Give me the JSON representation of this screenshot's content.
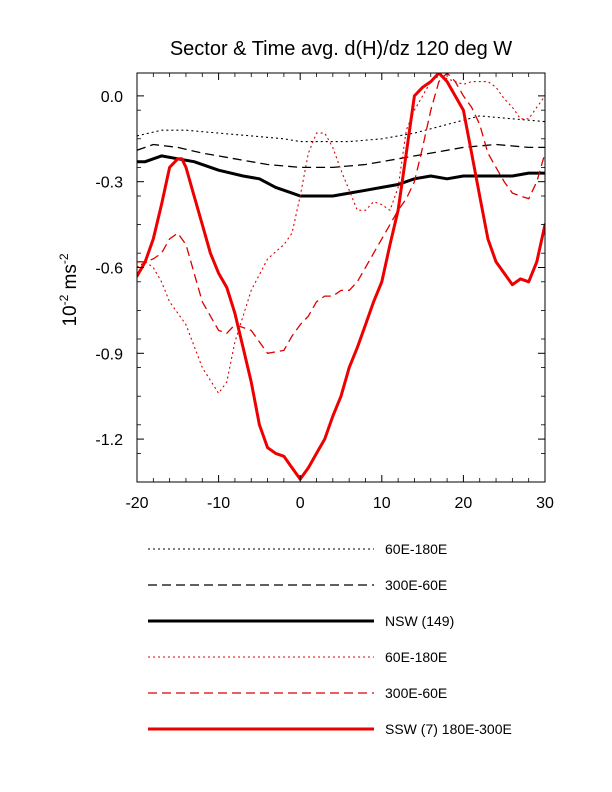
{
  "chart_data": {
    "type": "line",
    "title": "Sector & Time avg. d(H)/dz 120 deg W",
    "xlabel": "",
    "ylabel_base": "10",
    "ylabel_exp1": "-2",
    "ylabel_unit": " ms",
    "ylabel_exp2": "-2",
    "xlim": [
      -20,
      30
    ],
    "ylim": [
      -1.35,
      0.08
    ],
    "xticks": [
      -20,
      -10,
      0,
      10,
      20,
      30
    ],
    "xtick_labels": [
      "-20",
      "-10",
      "0",
      "10",
      "20",
      "30"
    ],
    "yticks": [
      0.0,
      -0.3,
      -0.6,
      -0.9,
      -1.2
    ],
    "ytick_labels": [
      "0.0",
      "-0.3",
      "-0.6",
      "-0.9",
      "-1.2"
    ],
    "grid": false,
    "legend_position": "below",
    "series": [
      {
        "name": "60E-180E",
        "color": "#000000",
        "style": "dotted",
        "width": "thin",
        "x": [
          -20,
          -17,
          -14,
          -10,
          -6,
          -2,
          0,
          2,
          6,
          10,
          14,
          18,
          22,
          26,
          30
        ],
        "y": [
          -0.14,
          -0.12,
          -0.12,
          -0.13,
          -0.14,
          -0.15,
          -0.16,
          -0.16,
          -0.16,
          -0.15,
          -0.13,
          -0.1,
          -0.07,
          -0.08,
          -0.09
        ]
      },
      {
        "name": "300E-60E",
        "color": "#000000",
        "style": "dashed",
        "width": "medium",
        "x": [
          -20,
          -18,
          -15,
          -12,
          -8,
          -4,
          0,
          4,
          8,
          12,
          16,
          20,
          24,
          28,
          30
        ],
        "y": [
          -0.19,
          -0.17,
          -0.18,
          -0.2,
          -0.22,
          -0.24,
          -0.25,
          -0.25,
          -0.24,
          -0.22,
          -0.2,
          -0.18,
          -0.17,
          -0.18,
          -0.18
        ]
      },
      {
        "name": "NSW (149)",
        "color": "#000000",
        "style": "solid",
        "width": "thick",
        "x": [
          -20,
          -19,
          -17,
          -15,
          -13,
          -10,
          -7,
          -5,
          -3,
          -1,
          0,
          2,
          4,
          6,
          8,
          10,
          12,
          14,
          16,
          18,
          20,
          22,
          24,
          26,
          28,
          30
        ],
        "y": [
          -0.23,
          -0.23,
          -0.21,
          -0.22,
          -0.23,
          -0.26,
          -0.28,
          -0.29,
          -0.32,
          -0.34,
          -0.35,
          -0.35,
          -0.35,
          -0.34,
          -0.33,
          -0.32,
          -0.31,
          -0.29,
          -0.28,
          -0.29,
          -0.28,
          -0.28,
          -0.28,
          -0.28,
          -0.27,
          -0.27
        ]
      },
      {
        "name": "60E-180E",
        "color": "#dd0000",
        "style": "dotted",
        "width": "thin",
        "x": [
          -20,
          -19,
          -18,
          -17,
          -16,
          -14,
          -12,
          -10,
          -9,
          -8,
          -7,
          -6,
          -4,
          -2,
          -1,
          0,
          1,
          2,
          3,
          4,
          5,
          6,
          7,
          8,
          9,
          10,
          11,
          12,
          13,
          14,
          15,
          16,
          17,
          18,
          19,
          20,
          21,
          22,
          23,
          24,
          25,
          26,
          27,
          28,
          29,
          30
        ],
        "y": [
          -0.6,
          -0.58,
          -0.6,
          -0.65,
          -0.72,
          -0.8,
          -0.95,
          -1.04,
          -1.0,
          -0.86,
          -0.77,
          -0.68,
          -0.57,
          -0.52,
          -0.48,
          -0.35,
          -0.2,
          -0.13,
          -0.13,
          -0.18,
          -0.26,
          -0.33,
          -0.4,
          -0.4,
          -0.37,
          -0.38,
          -0.4,
          -0.32,
          -0.12,
          -0.05,
          0.0,
          0.05,
          0.07,
          0.06,
          0.05,
          0.04,
          0.05,
          0.05,
          0.05,
          0.03,
          -0.01,
          -0.04,
          -0.08,
          -0.08,
          -0.04,
          0.0
        ]
      },
      {
        "name": "300E-60E",
        "color": "#dd0000",
        "style": "dashed",
        "width": "medium",
        "x": [
          -20,
          -19,
          -18,
          -17,
          -16,
          -15,
          -14,
          -12,
          -10,
          -9,
          -8,
          -6,
          -5,
          -4,
          -2,
          -1,
          0,
          1,
          2,
          3,
          4,
          5,
          6,
          7,
          8,
          9,
          10,
          11,
          12,
          13,
          14,
          15,
          16,
          17,
          18,
          19,
          20,
          21,
          22,
          23,
          24,
          25,
          26,
          27,
          28,
          29,
          30
        ],
        "y": [
          -0.58,
          -0.58,
          -0.57,
          -0.55,
          -0.5,
          -0.48,
          -0.52,
          -0.72,
          -0.82,
          -0.83,
          -0.8,
          -0.82,
          -0.86,
          -0.9,
          -0.89,
          -0.84,
          -0.8,
          -0.77,
          -0.72,
          -0.7,
          -0.7,
          -0.68,
          -0.68,
          -0.65,
          -0.6,
          -0.55,
          -0.5,
          -0.45,
          -0.4,
          -0.36,
          -0.3,
          -0.18,
          -0.05,
          0.05,
          0.08,
          0.05,
          0.0,
          -0.04,
          -0.1,
          -0.2,
          -0.25,
          -0.3,
          -0.34,
          -0.35,
          -0.36,
          -0.3,
          -0.2
        ]
      },
      {
        "name": "SSW (7) 180E-300E",
        "color": "#ee0000",
        "style": "solid",
        "width": "thick",
        "x": [
          -20,
          -19,
          -18,
          -17,
          -16,
          -15,
          -14.5,
          -14,
          -13,
          -12,
          -11,
          -10,
          -9,
          -8,
          -7,
          -6,
          -5,
          -4,
          -3,
          -2,
          -1,
          0,
          1,
          2,
          3,
          4,
          5,
          6,
          7,
          8,
          9,
          10,
          11,
          12,
          13,
          14,
          15,
          16,
          17,
          18,
          19,
          20,
          21,
          22,
          23,
          24,
          25,
          26,
          27,
          28,
          29,
          30
        ],
        "y": [
          -0.63,
          -0.58,
          -0.5,
          -0.38,
          -0.25,
          -0.22,
          -0.22,
          -0.25,
          -0.35,
          -0.45,
          -0.55,
          -0.62,
          -0.67,
          -0.76,
          -0.88,
          -1.0,
          -1.15,
          -1.23,
          -1.25,
          -1.26,
          -1.3,
          -1.34,
          -1.3,
          -1.25,
          -1.2,
          -1.12,
          -1.05,
          -0.95,
          -0.88,
          -0.8,
          -0.72,
          -0.65,
          -0.52,
          -0.4,
          -0.2,
          0.0,
          0.03,
          0.05,
          0.08,
          0.05,
          0.0,
          -0.05,
          -0.2,
          -0.35,
          -0.5,
          -0.58,
          -0.62,
          -0.66,
          -0.64,
          -0.65,
          -0.58,
          -0.45
        ]
      }
    ]
  }
}
